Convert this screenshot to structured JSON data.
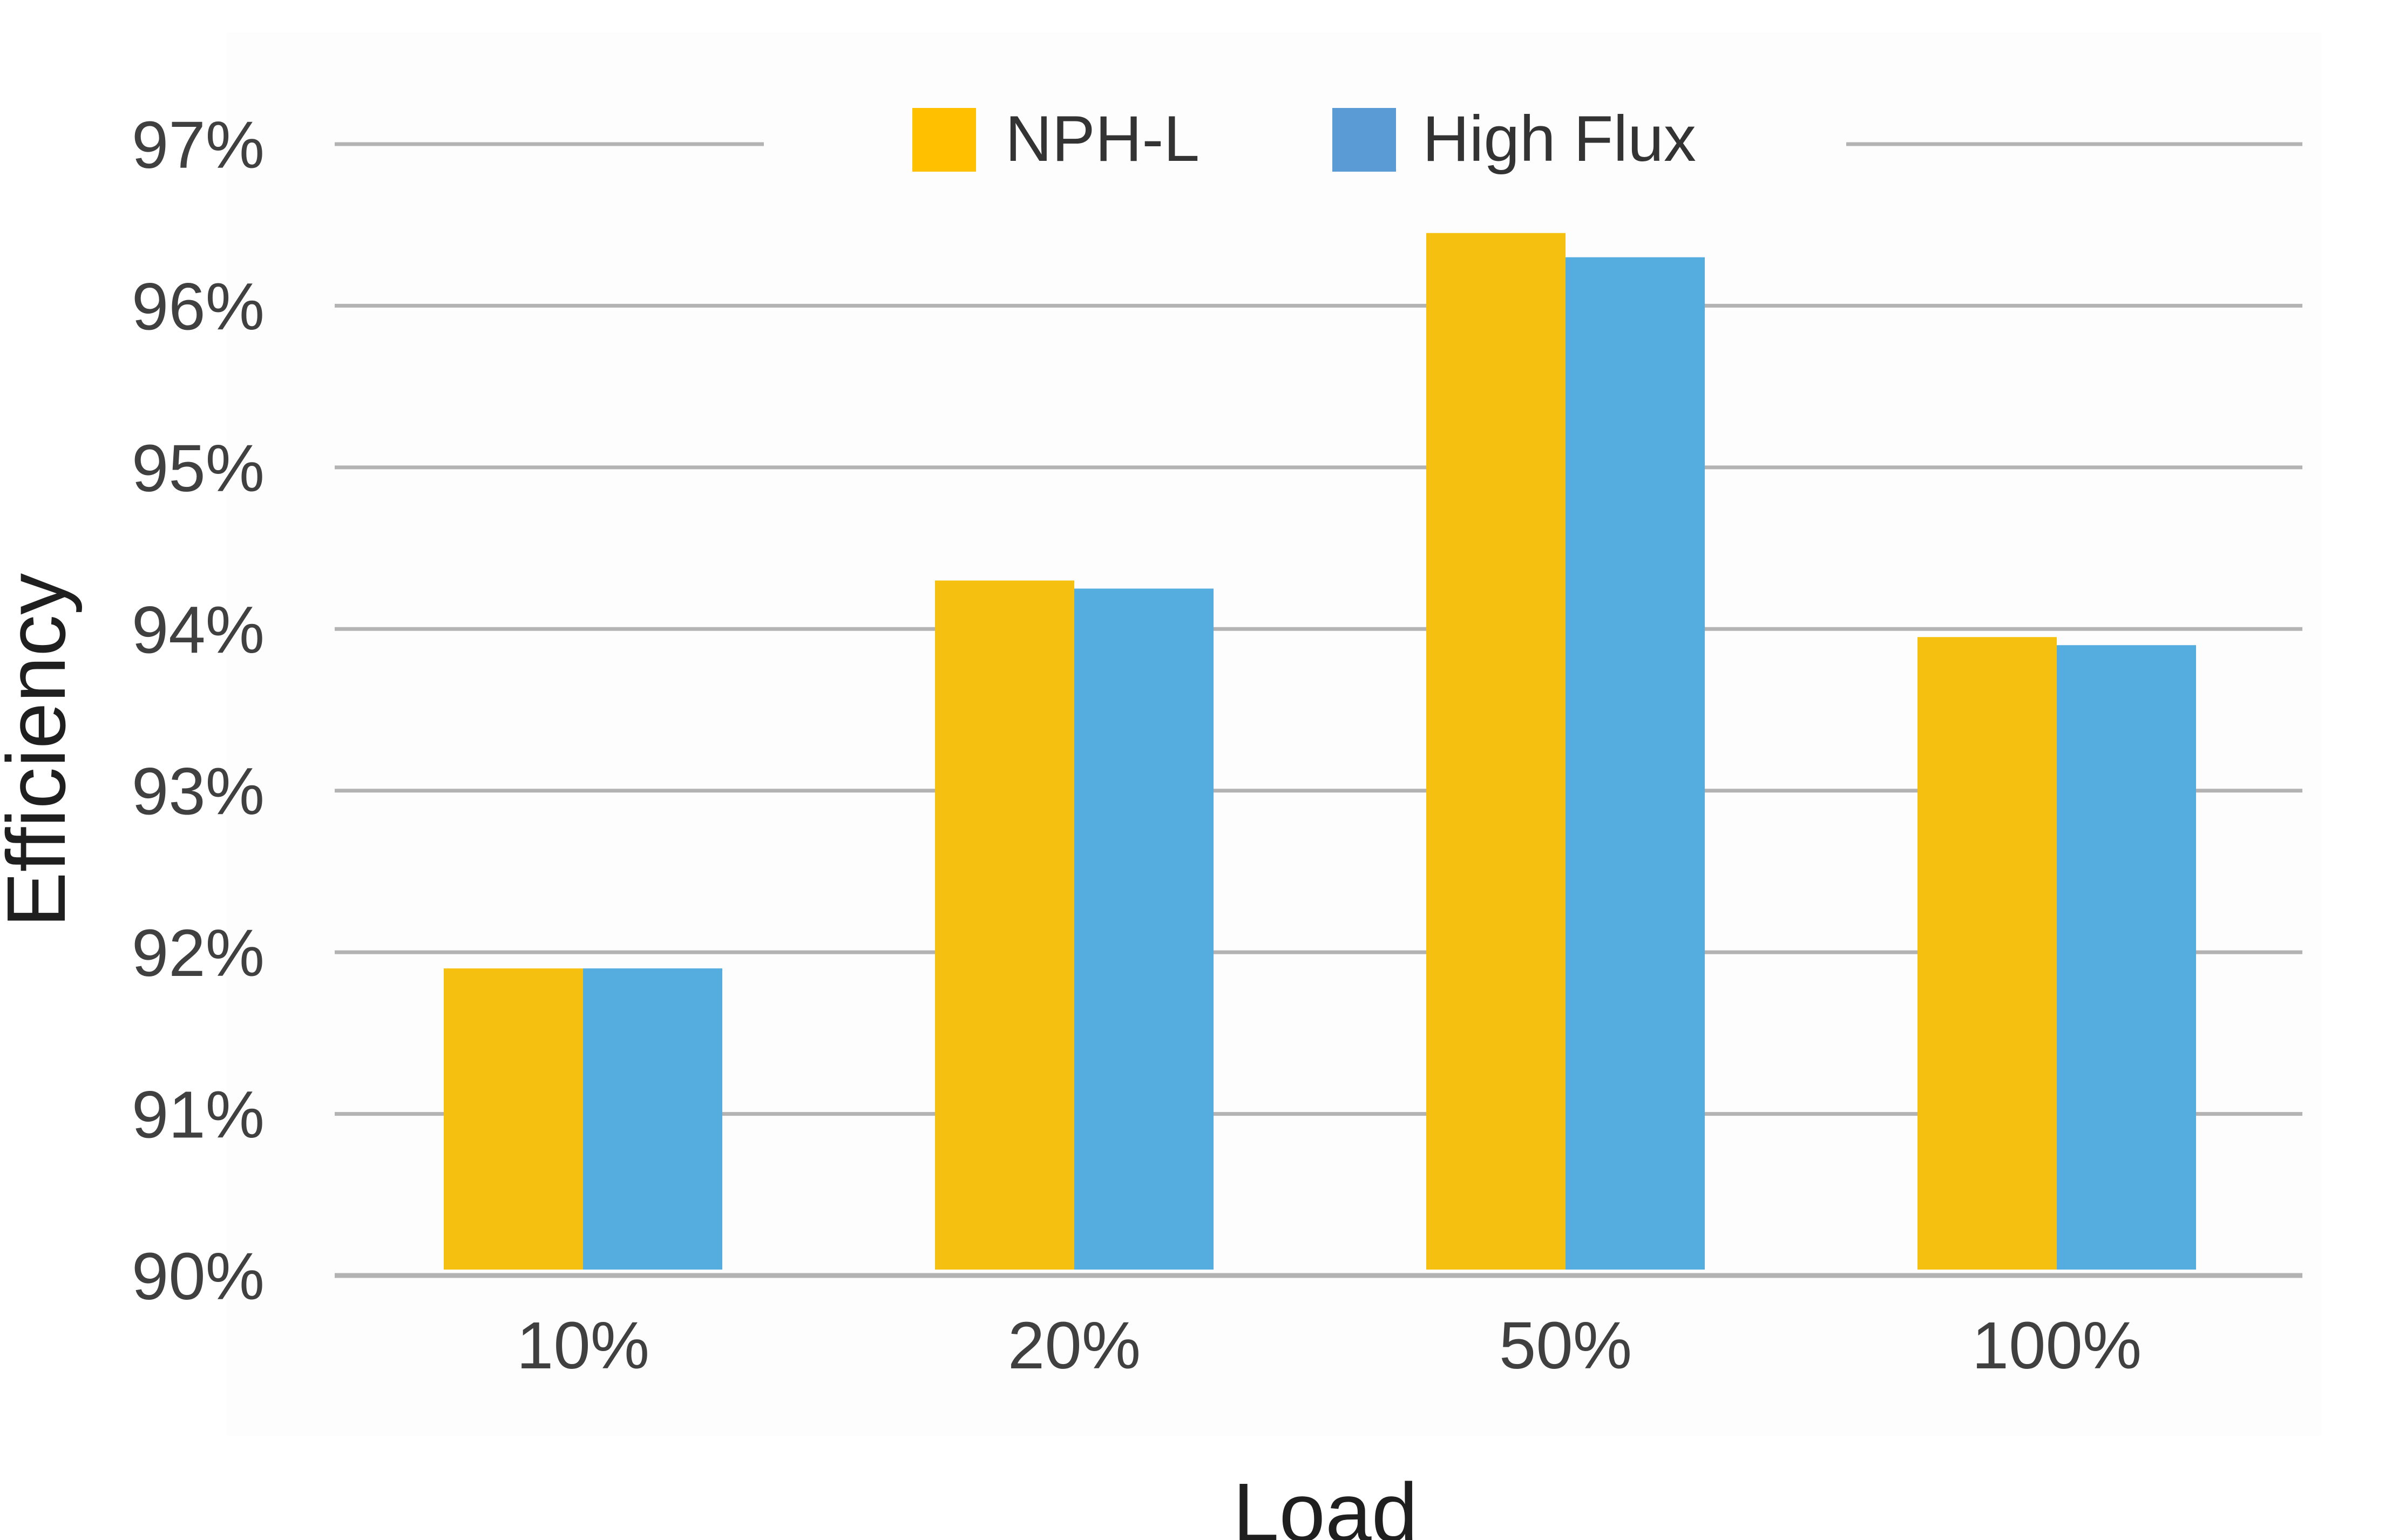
{
  "chart_data": {
    "type": "bar",
    "title": "",
    "xlabel": "Load",
    "ylabel": "Efficiency",
    "categories": [
      "10%",
      "20%",
      "50%",
      "100%"
    ],
    "series": [
      {
        "name": "NPH-L",
        "values": [
          91.9,
          94.3,
          96.45,
          93.95
        ],
        "color": "#F5C010"
      },
      {
        "name": "High Flux",
        "values": [
          91.9,
          94.25,
          96.3,
          93.9
        ],
        "color": "#54ACDF"
      }
    ],
    "ylim": [
      90,
      97
    ],
    "ytick_values": [
      90,
      91,
      92,
      93,
      94,
      95,
      96,
      97
    ],
    "ytick_labels": [
      "90%",
      "91%",
      "92%",
      "93%",
      "94%",
      "95%",
      "96%",
      "97%"
    ],
    "grid": true,
    "legend": {
      "position": "top-center",
      "items": [
        {
          "label": "NPH-L",
          "color": "#FFC000"
        },
        {
          "label": "High Flux",
          "color": "#5B9BD5"
        }
      ]
    }
  }
}
